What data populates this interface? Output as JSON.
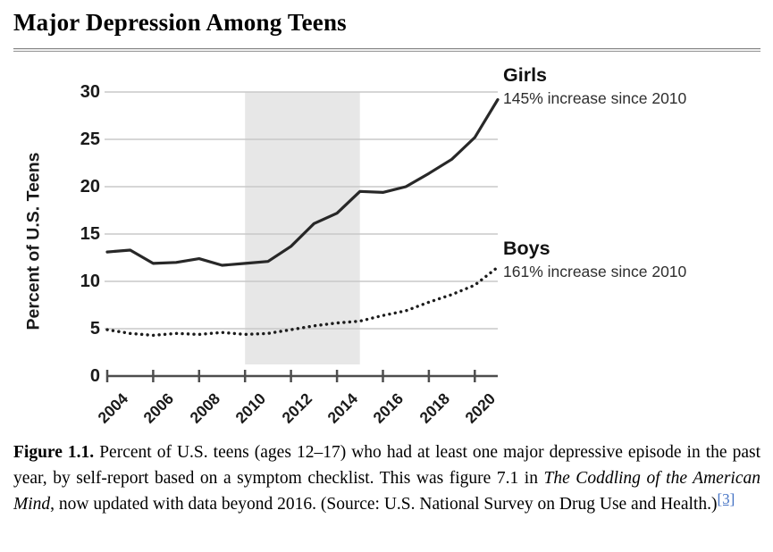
{
  "title": "Major Depression Among Teens",
  "legend": {
    "girls": {
      "name": "Girls",
      "note": "145% increase since 2010"
    },
    "boys": {
      "name": "Boys",
      "note": "161% increase since 2010"
    }
  },
  "caption": {
    "label": "Figure 1.1.",
    "text1": " Percent of U.S. teens (ages 12–17) who had at least one major depressive episode in the past year, by self-report based on a symptom checklist. This was figure 7.1 in ",
    "italic1": "The Coddling of the American Mind",
    "text2": ", now updated with data beyond 2016. (Source: U.S. National Survey on Drug Use and Health.)",
    "footnote": "[3]"
  },
  "chart_data": {
    "type": "line",
    "title": "",
    "xlabel": "",
    "ylabel": "Percent of U.S. Teens",
    "x": [
      2004,
      2005,
      2006,
      2007,
      2008,
      2009,
      2010,
      2011,
      2012,
      2013,
      2014,
      2015,
      2016,
      2017,
      2018,
      2019,
      2020,
      2021
    ],
    "series": [
      {
        "name": "Girls",
        "style": "solid",
        "color": "#282828",
        "values": [
          13.1,
          13.3,
          11.9,
          12.0,
          12.4,
          11.7,
          11.9,
          12.1,
          13.7,
          16.1,
          17.2,
          19.5,
          19.4,
          20.0,
          21.4,
          22.9,
          25.2,
          29.2
        ]
      },
      {
        "name": "Boys",
        "style": "dotted",
        "color": "#1c1c1c",
        "values": [
          4.9,
          4.5,
          4.3,
          4.5,
          4.4,
          4.6,
          4.4,
          4.5,
          4.9,
          5.3,
          5.6,
          5.8,
          6.4,
          6.9,
          7.8,
          8.6,
          9.6,
          11.5
        ]
      }
    ],
    "xticks": [
      2004,
      2006,
      2008,
      2010,
      2012,
      2014,
      2016,
      2018,
      2020
    ],
    "yticks": [
      0,
      5,
      10,
      15,
      20,
      25,
      30
    ],
    "xlim": [
      2004,
      2021
    ],
    "ylim": [
      0,
      30
    ],
    "shaded_region": {
      "from": 2010,
      "to": 2015
    },
    "grid": "horizontal",
    "legend_position": "right-inline"
  },
  "colors": {
    "band": "#e7e7e7",
    "gridline": "#c9c9c9",
    "axis": "#4d4d4d",
    "footnote_link": "#4472c4"
  }
}
